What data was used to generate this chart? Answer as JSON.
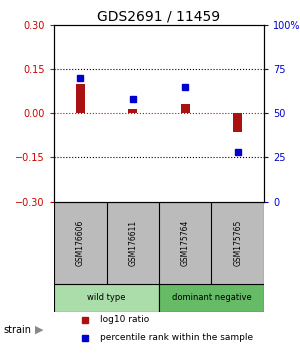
{
  "title": "GDS2691 / 11459",
  "samples": [
    "GSM176606",
    "GSM176611",
    "GSM175764",
    "GSM175765"
  ],
  "log10_ratio": [
    0.1,
    0.015,
    0.03,
    -0.065
  ],
  "percentile_rank": [
    70,
    58,
    65,
    28
  ],
  "ylim_left": [
    -0.3,
    0.3
  ],
  "ylim_right": [
    0,
    100
  ],
  "yticks_left": [
    -0.3,
    -0.15,
    0,
    0.15,
    0.3
  ],
  "yticks_right": [
    0,
    25,
    50,
    75,
    100
  ],
  "hline_dotted": [
    0.15,
    -0.15
  ],
  "hline_red": 0,
  "bar_color": "#aa1111",
  "dot_color": "#0000cc",
  "groups": [
    {
      "label": "wild type",
      "samples": [
        0,
        1
      ],
      "color": "#aaddaa"
    },
    {
      "label": "dominant negative",
      "samples": [
        2,
        3
      ],
      "color": "#66bb66"
    }
  ],
  "strain_label": "strain",
  "legend_items": [
    {
      "color": "#aa1111",
      "label": "log10 ratio"
    },
    {
      "color": "#0000cc",
      "label": "percentile rank within the sample"
    }
  ],
  "left_tick_color": "#cc0000",
  "right_tick_color": "#0000cc",
  "bg_color": "#ffffff",
  "sample_box_color": "#bbbbbb",
  "tick_label_fontsize": 7,
  "title_fontsize": 10,
  "bar_width": 0.18
}
